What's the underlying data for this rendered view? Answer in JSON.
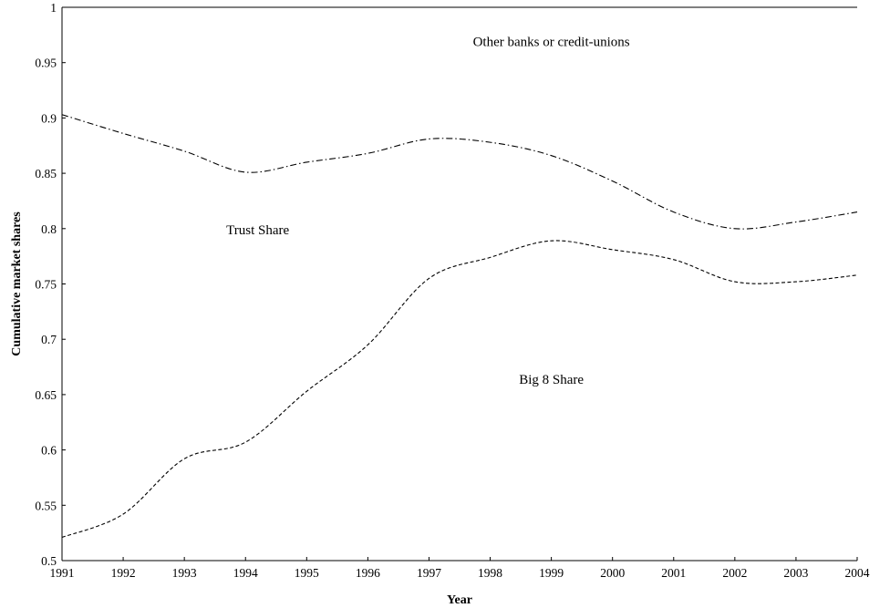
{
  "chart_data": {
    "type": "line",
    "xlabel": "Year",
    "ylabel": "Cumulative market shares",
    "xlim": [
      1991,
      2004
    ],
    "ylim": [
      0.5,
      1.0
    ],
    "x_ticks": [
      "1991",
      "1992",
      "1993",
      "1994",
      "1995",
      "1996",
      "1997",
      "1998",
      "1999",
      "2000",
      "2001",
      "2002",
      "2003",
      "2004"
    ],
    "y_ticks": [
      "0.5",
      "0.55",
      "0.6",
      "0.65",
      "0.7",
      "0.75",
      "0.8",
      "0.85",
      "0.9",
      "0.95",
      "1"
    ],
    "grid": false,
    "legend": "none",
    "x": [
      1991,
      1992,
      1993,
      1994,
      1995,
      1996,
      1997,
      1998,
      1999,
      2000,
      2001,
      2002,
      2003,
      2004
    ],
    "series": [
      {
        "key": "total",
        "style": "solid",
        "values": [
          1,
          1,
          1,
          1,
          1,
          1,
          1,
          1,
          1,
          1,
          1,
          1,
          1,
          1
        ]
      },
      {
        "key": "trust_cumulative",
        "style": "dashdot",
        "values": [
          0.903,
          0.886,
          0.87,
          0.851,
          0.86,
          0.868,
          0.881,
          0.878,
          0.866,
          0.843,
          0.815,
          0.8,
          0.806,
          0.815
        ]
      },
      {
        "key": "big8_cumulative",
        "style": "dashed",
        "values": [
          0.521,
          0.542,
          0.592,
          0.607,
          0.653,
          0.695,
          0.755,
          0.774,
          0.789,
          0.781,
          0.772,
          0.752,
          0.752,
          0.758
        ]
      }
    ],
    "annotations": [
      {
        "key": "other",
        "text": "Other banks or credit-unions",
        "x": 1999.0,
        "y": 0.965
      },
      {
        "key": "trust",
        "text": "Trust Share",
        "x": 1994.2,
        "y": 0.795
      },
      {
        "key": "big8",
        "text": "Big 8 Share",
        "x": 1999.0,
        "y": 0.66
      }
    ],
    "colors": {
      "line": "#000000",
      "background": "#ffffff"
    }
  }
}
